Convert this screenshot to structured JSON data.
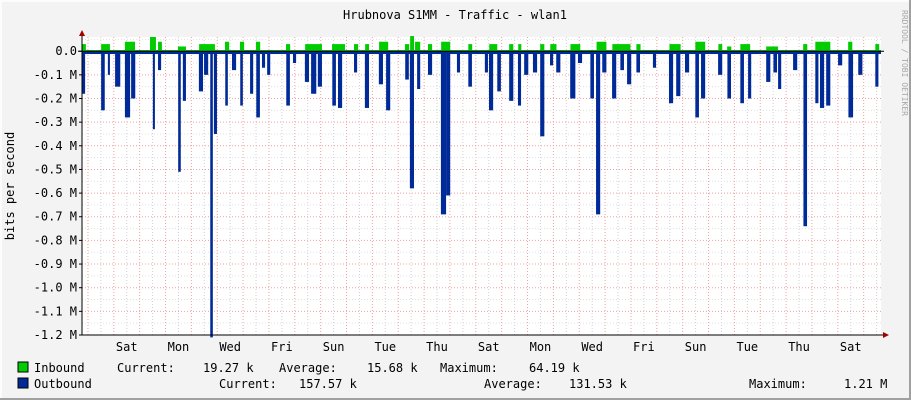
{
  "chart_data": {
    "type": "area",
    "title": "Hrubnova S1MM - Traffic - wlan1",
    "ylabel": "bits per second",
    "xlabel": "",
    "watermark": "RRDTOOL / TOBI OETIKER",
    "x_unit": "days from left edge",
    "xlim": [
      0,
      30.9
    ],
    "ylim": [
      -1.2,
      0.06
    ],
    "y_unit": "M bits/s",
    "y_ticks": [
      {
        "value": 0.0,
        "label": "0.0"
      },
      {
        "value": -0.1,
        "label": "-0.1 M"
      },
      {
        "value": -0.2,
        "label": "-0.2 M"
      },
      {
        "value": -0.3,
        "label": "-0.3 M"
      },
      {
        "value": -0.4,
        "label": "-0.4 M"
      },
      {
        "value": -0.5,
        "label": "-0.5 M"
      },
      {
        "value": -0.6,
        "label": "-0.6 M"
      },
      {
        "value": -0.7,
        "label": "-0.7 M"
      },
      {
        "value": -0.8,
        "label": "-0.8 M"
      },
      {
        "value": -0.9,
        "label": "-0.9 M"
      },
      {
        "value": -1.0,
        "label": "-1.0 M"
      },
      {
        "value": -1.1,
        "label": "-1.1 M"
      },
      {
        "value": -1.2,
        "label": "-1.2 M"
      }
    ],
    "x_ticks": [
      {
        "value": 1.73,
        "label": "Sat"
      },
      {
        "value": 3.73,
        "label": "Mon"
      },
      {
        "value": 5.73,
        "label": "Wed"
      },
      {
        "value": 7.73,
        "label": "Fri"
      },
      {
        "value": 9.73,
        "label": "Sun"
      },
      {
        "value": 11.73,
        "label": "Tue"
      },
      {
        "value": 13.73,
        "label": "Thu"
      },
      {
        "value": 15.73,
        "label": "Sat"
      },
      {
        "value": 17.73,
        "label": "Mon"
      },
      {
        "value": 19.73,
        "label": "Wed"
      },
      {
        "value": 21.73,
        "label": "Fri"
      },
      {
        "value": 23.73,
        "label": "Sun"
      },
      {
        "value": 25.73,
        "label": "Tue"
      },
      {
        "value": 27.73,
        "label": "Thu"
      },
      {
        "value": 29.73,
        "label": "Sat"
      }
    ],
    "midnight_offset": 0.23,
    "grid": true,
    "legend_position": "bottom",
    "series": [
      {
        "name": "Inbound",
        "color": "#00cc00",
        "baseline": 0.005,
        "segments_note": "[start_day, end_day, value_M]",
        "segments": [
          [
            0,
            0.15,
            0.03
          ],
          [
            0.74,
            1.08,
            0.03
          ],
          [
            1.66,
            2.05,
            0.04
          ],
          [
            2.63,
            2.86,
            0.06
          ],
          [
            2.94,
            3.09,
            0.04
          ],
          [
            3.71,
            4.02,
            0.02
          ],
          [
            4.53,
            5.14,
            0.03
          ],
          [
            5.53,
            5.69,
            0.04
          ],
          [
            6.11,
            6.27,
            0.04
          ],
          [
            6.73,
            6.89,
            0.04
          ],
          [
            7.89,
            8.05,
            0.03
          ],
          [
            8.63,
            9.28,
            0.03
          ],
          [
            9.67,
            10.17,
            0.03
          ],
          [
            10.52,
            10.68,
            0.03
          ],
          [
            10.95,
            11.1,
            0.03
          ],
          [
            11.49,
            11.84,
            0.04
          ],
          [
            12.49,
            12.65,
            0.03
          ],
          [
            12.69,
            12.84,
            0.064
          ],
          [
            12.88,
            13.08,
            0.04
          ],
          [
            13.38,
            13.54,
            0.03
          ],
          [
            13.89,
            14.24,
            0.04
          ],
          [
            14.94,
            15.09,
            0.03
          ],
          [
            15.75,
            16.06,
            0.03
          ],
          [
            16.52,
            16.68,
            0.03
          ],
          [
            16.87,
            16.99,
            0.03
          ],
          [
            17.72,
            17.88,
            0.03
          ],
          [
            18.11,
            18.35,
            0.03
          ],
          [
            18.89,
            19.27,
            0.03
          ],
          [
            19.9,
            20.28,
            0.04
          ],
          [
            20.51,
            21.21,
            0.03
          ],
          [
            21.44,
            21.6,
            0.03
          ],
          [
            22.72,
            23.15,
            0.03
          ],
          [
            23.72,
            24.1,
            0.04
          ],
          [
            24.61,
            24.76,
            0.03
          ],
          [
            24.95,
            25.11,
            0.02
          ],
          [
            25.46,
            25.84,
            0.03
          ],
          [
            26.46,
            26.92,
            0.02
          ],
          [
            27.89,
            28.05,
            0.03
          ],
          [
            28.36,
            28.94,
            0.04
          ],
          [
            29.63,
            29.79,
            0.04
          ],
          [
            30.68,
            30.83,
            0.03
          ]
        ],
        "current": "19.27 k",
        "average": "15.68 k",
        "maximum": "64.19 k"
      },
      {
        "name": "Outbound",
        "color": "#002a97",
        "baseline": -0.012,
        "segments": [
          [
            0,
            0.12,
            -0.18
          ],
          [
            0.74,
            0.88,
            -0.25
          ],
          [
            1.0,
            1.08,
            -0.1
          ],
          [
            1.28,
            1.48,
            -0.15
          ],
          [
            1.66,
            1.86,
            -0.28
          ],
          [
            1.9,
            2.06,
            -0.2
          ],
          [
            2.74,
            2.82,
            -0.33
          ],
          [
            2.94,
            3.06,
            -0.08
          ],
          [
            3.72,
            3.82,
            -0.51
          ],
          [
            3.9,
            4.02,
            -0.21
          ],
          [
            4.52,
            4.68,
            -0.17
          ],
          [
            4.72,
            4.88,
            -0.1
          ],
          [
            4.96,
            5.06,
            -1.21
          ],
          [
            5.1,
            5.22,
            -0.35
          ],
          [
            5.54,
            5.64,
            -0.23
          ],
          [
            5.8,
            5.96,
            -0.08
          ],
          [
            6.12,
            6.22,
            -0.23
          ],
          [
            6.5,
            6.62,
            -0.18
          ],
          [
            6.74,
            6.88,
            -0.28
          ],
          [
            6.96,
            7.08,
            -0.07
          ],
          [
            7.16,
            7.28,
            -0.1
          ],
          [
            7.9,
            8.04,
            -0.23
          ],
          [
            8.16,
            8.28,
            -0.05
          ],
          [
            8.62,
            8.78,
            -0.13
          ],
          [
            8.86,
            9.06,
            -0.18
          ],
          [
            9.12,
            9.28,
            -0.15
          ],
          [
            9.68,
            9.82,
            -0.23
          ],
          [
            9.9,
            10.06,
            -0.24
          ],
          [
            10.52,
            10.64,
            -0.09
          ],
          [
            10.94,
            11.1,
            -0.24
          ],
          [
            11.48,
            11.64,
            -0.14
          ],
          [
            11.76,
            11.92,
            -0.25
          ],
          [
            12.5,
            12.64,
            -0.12
          ],
          [
            12.68,
            12.84,
            -0.58
          ],
          [
            12.96,
            13.08,
            -0.16
          ],
          [
            13.38,
            13.54,
            -0.1
          ],
          [
            13.88,
            14.08,
            -0.69
          ],
          [
            14.08,
            14.24,
            -0.61
          ],
          [
            14.5,
            14.62,
            -0.09
          ],
          [
            14.94,
            15.08,
            -0.15
          ],
          [
            15.58,
            15.7,
            -0.09
          ],
          [
            15.74,
            15.9,
            -0.25
          ],
          [
            16.06,
            16.2,
            -0.17
          ],
          [
            16.52,
            16.68,
            -0.21
          ],
          [
            16.86,
            16.98,
            -0.23
          ],
          [
            17.1,
            17.26,
            -0.1
          ],
          [
            17.44,
            17.6,
            -0.09
          ],
          [
            17.72,
            17.88,
            -0.36
          ],
          [
            18.1,
            18.22,
            -0.06
          ],
          [
            18.34,
            18.5,
            -0.09
          ],
          [
            18.88,
            19.08,
            -0.2
          ],
          [
            19.18,
            19.34,
            -0.05
          ],
          [
            19.66,
            19.8,
            -0.2
          ],
          [
            19.88,
            20.04,
            -0.69
          ],
          [
            20.12,
            20.28,
            -0.09
          ],
          [
            20.5,
            20.66,
            -0.2
          ],
          [
            20.82,
            20.96,
            -0.08
          ],
          [
            21.08,
            21.24,
            -0.14
          ],
          [
            21.44,
            21.58,
            -0.09
          ],
          [
            22.08,
            22.2,
            -0.07
          ],
          [
            22.7,
            22.86,
            -0.22
          ],
          [
            22.98,
            23.14,
            -0.19
          ],
          [
            23.32,
            23.48,
            -0.09
          ],
          [
            23.72,
            23.86,
            -0.28
          ],
          [
            23.94,
            24.1,
            -0.2
          ],
          [
            24.6,
            24.76,
            -0.1
          ],
          [
            24.96,
            25.1,
            -0.2
          ],
          [
            25.46,
            25.6,
            -0.22
          ],
          [
            25.76,
            25.88,
            -0.2
          ],
          [
            26.46,
            26.62,
            -0.13
          ],
          [
            26.74,
            26.88,
            -0.09
          ],
          [
            26.92,
            27.04,
            -0.16
          ],
          [
            27.5,
            27.66,
            -0.08
          ],
          [
            27.9,
            28.04,
            -0.74
          ],
          [
            28.36,
            28.48,
            -0.22
          ],
          [
            28.54,
            28.7,
            -0.24
          ],
          [
            28.78,
            28.94,
            -0.23
          ],
          [
            29.24,
            29.4,
            -0.06
          ],
          [
            29.64,
            29.82,
            -0.28
          ],
          [
            30.02,
            30.18,
            -0.1
          ],
          [
            30.68,
            30.8,
            -0.15
          ]
        ],
        "current": "157.57 k",
        "average": "131.53 k",
        "maximum": "1.21 M"
      }
    ]
  },
  "legend": {
    "current_label": "Current:",
    "average_label": "Average:",
    "maximum_label": "Maximum:"
  }
}
